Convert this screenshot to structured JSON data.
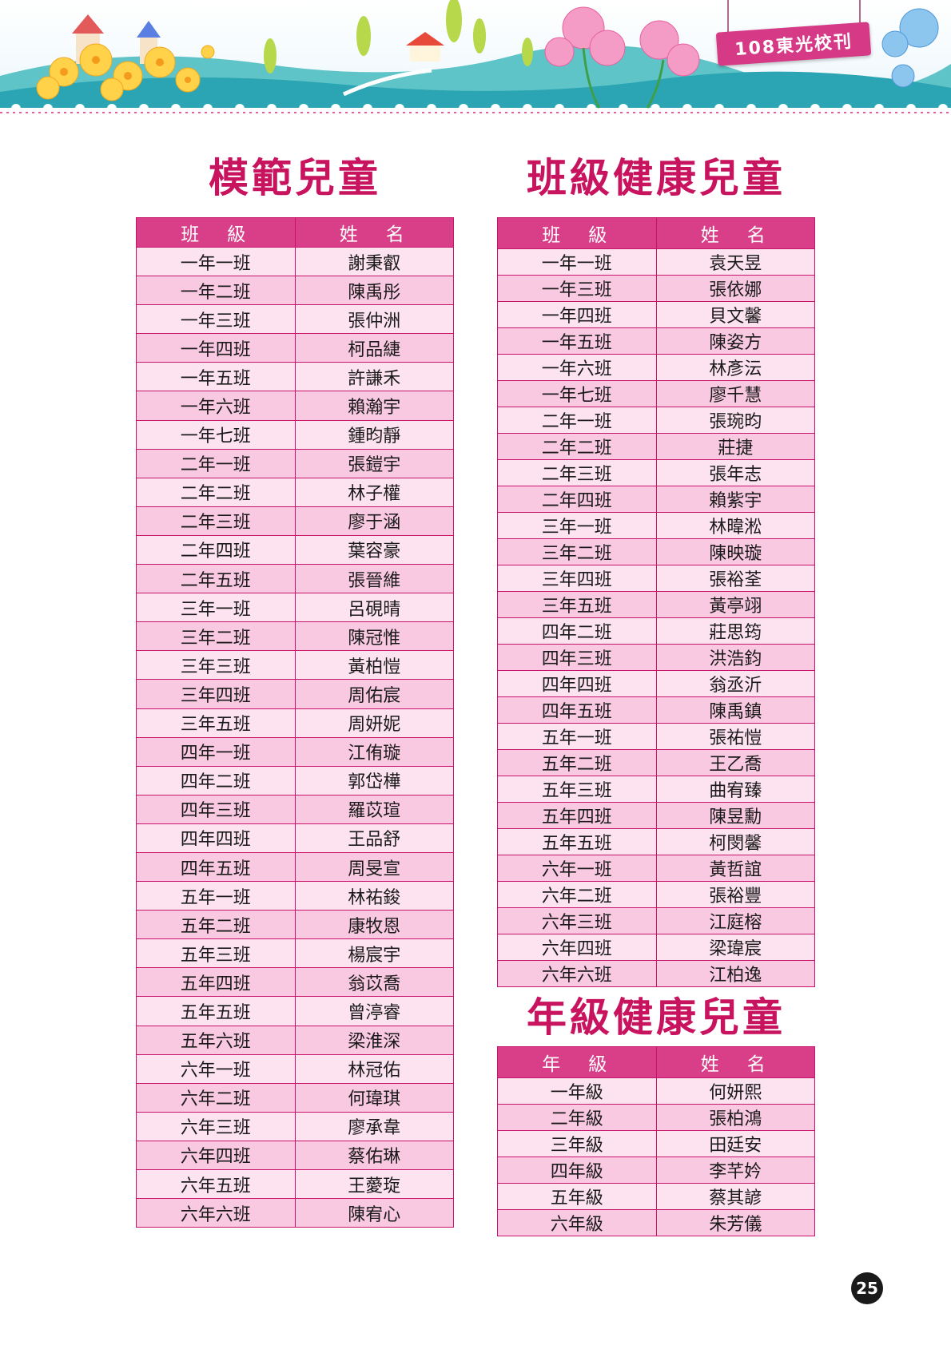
{
  "header": {
    "magazine_tag": "108東光校刊"
  },
  "model_children": {
    "title": "模範兒童",
    "headers": [
      "班　級",
      "姓　名"
    ],
    "rows": [
      [
        "一年一班",
        "謝秉叡"
      ],
      [
        "一年二班",
        "陳禹彤"
      ],
      [
        "一年三班",
        "張仲洲"
      ],
      [
        "一年四班",
        "柯品緁"
      ],
      [
        "一年五班",
        "許謙禾"
      ],
      [
        "一年六班",
        "賴瀚宇"
      ],
      [
        "一年七班",
        "鍾昀靜"
      ],
      [
        "二年一班",
        "張鎧宇"
      ],
      [
        "二年二班",
        "林子權"
      ],
      [
        "二年三班",
        "廖于涵"
      ],
      [
        "二年四班",
        "葉容豪"
      ],
      [
        "二年五班",
        "張晉維"
      ],
      [
        "三年一班",
        "呂硯晴"
      ],
      [
        "三年二班",
        "陳冠惟"
      ],
      [
        "三年三班",
        "黃柏愷"
      ],
      [
        "三年四班",
        "周佑宸"
      ],
      [
        "三年五班",
        "周妍妮"
      ],
      [
        "四年一班",
        "江侑璇"
      ],
      [
        "四年二班",
        "郭岱樺"
      ],
      [
        "四年三班",
        "羅苡瑄"
      ],
      [
        "四年四班",
        "王品舒"
      ],
      [
        "四年五班",
        "周旻宣"
      ],
      [
        "五年一班",
        "林祐鋑"
      ],
      [
        "五年二班",
        "康牧恩"
      ],
      [
        "五年三班",
        "楊宸宇"
      ],
      [
        "五年四班",
        "翁苡喬"
      ],
      [
        "五年五班",
        "曾渟睿"
      ],
      [
        "五年六班",
        "梁淮深"
      ],
      [
        "六年一班",
        "林冠佑"
      ],
      [
        "六年二班",
        "何瑋琪"
      ],
      [
        "六年三班",
        "廖承韋"
      ],
      [
        "六年四班",
        "蔡佑琳"
      ],
      [
        "六年五班",
        "王薆琁"
      ],
      [
        "六年六班",
        "陳宥心"
      ]
    ]
  },
  "class_healthy_children": {
    "title": "班級健康兒童",
    "headers": [
      "班　級",
      "姓　名"
    ],
    "rows": [
      [
        "一年一班",
        "袁天昱"
      ],
      [
        "一年三班",
        "張依娜"
      ],
      [
        "一年四班",
        "貝文馨"
      ],
      [
        "一年五班",
        "陳姿方"
      ],
      [
        "一年六班",
        "林彥沄"
      ],
      [
        "一年七班",
        "廖千慧"
      ],
      [
        "二年一班",
        "張琬昀"
      ],
      [
        "二年二班",
        "莊捷"
      ],
      [
        "二年三班",
        "張年志"
      ],
      [
        "二年四班",
        "賴紫宇"
      ],
      [
        "三年一班",
        "林暐淞"
      ],
      [
        "三年二班",
        "陳映璇"
      ],
      [
        "三年四班",
        "張裕荃"
      ],
      [
        "三年五班",
        "黃亭翊"
      ],
      [
        "四年二班",
        "莊思筠"
      ],
      [
        "四年三班",
        "洪浩鈞"
      ],
      [
        "四年四班",
        "翁丞沂"
      ],
      [
        "四年五班",
        "陳禹鎮"
      ],
      [
        "五年一班",
        "張祐愷"
      ],
      [
        "五年二班",
        "王乙喬"
      ],
      [
        "五年三班",
        "曲宥臻"
      ],
      [
        "五年四班",
        "陳昱勳"
      ],
      [
        "五年五班",
        "柯閔馨"
      ],
      [
        "六年一班",
        "黃哲誼"
      ],
      [
        "六年二班",
        "張裕豐"
      ],
      [
        "六年三班",
        "江庭榕"
      ],
      [
        "六年四班",
        "梁瑋宸"
      ],
      [
        "六年六班",
        "江柏逸"
      ]
    ]
  },
  "grade_healthy_children": {
    "title": "年級健康兒童",
    "headers": [
      "年　級",
      "姓　名"
    ],
    "rows": [
      [
        "一年級",
        "何妍熙"
      ],
      [
        "二年級",
        "張柏鴻"
      ],
      [
        "三年級",
        "田廷安"
      ],
      [
        "四年級",
        "李芊妗"
      ],
      [
        "五年級",
        "蔡其諺"
      ],
      [
        "六年級",
        "朱芳儀"
      ]
    ]
  },
  "page_number": "25",
  "colors": {
    "title": "#c8135f",
    "header_bg": "#d83f88",
    "row_light": "#fde3f0",
    "row_dark": "#f9c9e2",
    "border": "#c8136a"
  }
}
